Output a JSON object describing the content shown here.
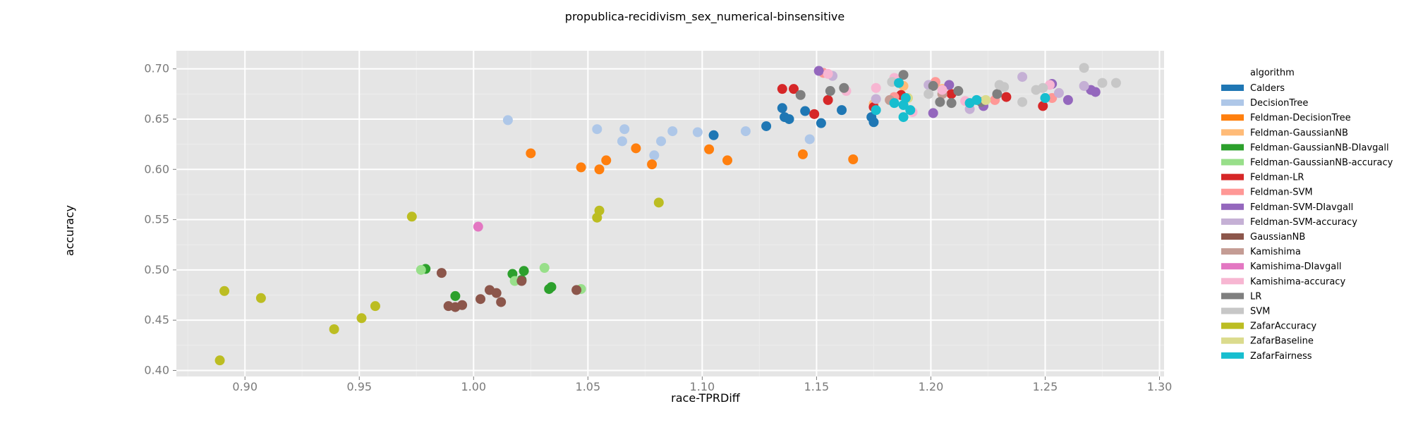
{
  "chart_data": {
    "type": "scatter",
    "title": "propublica-recidivism_sex_numerical-binsensitive",
    "xlabel": "race-TPRDiff",
    "ylabel": "accuracy",
    "xlim": [
      0.87,
      1.302
    ],
    "ylim": [
      0.394,
      0.718
    ],
    "x_ticks": [
      0.9,
      0.95,
      1.0,
      1.05,
      1.1,
      1.15,
      1.2,
      1.25,
      1.3
    ],
    "x_tick_labels": [
      "0.90",
      "0.95",
      "1.00",
      "1.05",
      "1.10",
      "1.15",
      "1.20",
      "1.25",
      "1.30"
    ],
    "y_ticks": [
      0.4,
      0.45,
      0.5,
      0.55,
      0.6,
      0.65,
      0.7
    ],
    "y_tick_labels": [
      "0.40",
      "0.45",
      "0.50",
      "0.55",
      "0.60",
      "0.65",
      "0.70"
    ],
    "grid": true,
    "background": "#e5e5e5",
    "legend": {
      "title": "algorithm",
      "position": "right"
    },
    "series": [
      {
        "name": "Calders",
        "color": "#1f77b4",
        "points": [
          [
            1.105,
            0.634
          ],
          [
            1.128,
            0.643
          ],
          [
            1.135,
            0.661
          ],
          [
            1.136,
            0.652
          ],
          [
            1.138,
            0.65
          ],
          [
            1.145,
            0.658
          ],
          [
            1.152,
            0.646
          ],
          [
            1.161,
            0.659
          ],
          [
            1.174,
            0.652
          ],
          [
            1.175,
            0.647
          ]
        ]
      },
      {
        "name": "DecisionTree",
        "color": "#aec7e8",
        "points": [
          [
            1.015,
            0.649
          ],
          [
            1.054,
            0.64
          ],
          [
            1.065,
            0.628
          ],
          [
            1.066,
            0.64
          ],
          [
            1.079,
            0.614
          ],
          [
            1.082,
            0.628
          ],
          [
            1.087,
            0.638
          ],
          [
            1.098,
            0.637
          ],
          [
            1.119,
            0.638
          ],
          [
            1.147,
            0.63
          ]
        ]
      },
      {
        "name": "Feldman-DecisionTree",
        "color": "#ff7f0e",
        "points": [
          [
            1.025,
            0.616
          ],
          [
            1.047,
            0.602
          ],
          [
            1.055,
            0.6
          ],
          [
            1.058,
            0.609
          ],
          [
            1.071,
            0.621
          ],
          [
            1.078,
            0.605
          ],
          [
            1.103,
            0.62
          ],
          [
            1.111,
            0.609
          ],
          [
            1.144,
            0.615
          ],
          [
            1.166,
            0.61
          ]
        ]
      },
      {
        "name": "Feldman-GaussianNB",
        "color": "#ffbb78",
        "points": [
          [
            1.175,
            0.665
          ],
          [
            1.188,
            0.683
          ],
          [
            1.205,
            0.68
          ]
        ]
      },
      {
        "name": "Feldman-GaussianNB-DIavgall",
        "color": "#2ca02c",
        "points": [
          [
            0.979,
            0.501
          ],
          [
            0.992,
            0.474
          ],
          [
            1.017,
            0.496
          ],
          [
            1.022,
            0.499
          ],
          [
            1.021,
            0.49
          ],
          [
            1.034,
            0.483
          ],
          [
            1.033,
            0.481
          ]
        ]
      },
      {
        "name": "Feldman-GaussianNB-accuracy",
        "color": "#98df8a",
        "points": [
          [
            0.977,
            0.5
          ],
          [
            1.018,
            0.489
          ],
          [
            1.031,
            0.502
          ],
          [
            1.047,
            0.481
          ]
        ]
      },
      {
        "name": "Feldman-LR",
        "color": "#d62728",
        "points": [
          [
            1.135,
            0.68
          ],
          [
            1.14,
            0.68
          ],
          [
            1.149,
            0.655
          ],
          [
            1.155,
            0.669
          ],
          [
            1.175,
            0.662
          ],
          [
            1.187,
            0.674
          ],
          [
            1.209,
            0.675
          ],
          [
            1.233,
            0.672
          ],
          [
            1.249,
            0.663
          ]
        ]
      },
      {
        "name": "Feldman-SVM",
        "color": "#ff9896",
        "points": [
          [
            1.153,
            0.696
          ],
          [
            1.184,
            0.672
          ],
          [
            1.202,
            0.687
          ],
          [
            1.228,
            0.669
          ],
          [
            1.253,
            0.671
          ]
        ]
      },
      {
        "name": "Feldman-SVM-DIavgall",
        "color": "#9467bd",
        "points": [
          [
            1.151,
            0.698
          ],
          [
            1.201,
            0.656
          ],
          [
            1.208,
            0.684
          ],
          [
            1.223,
            0.663
          ],
          [
            1.253,
            0.685
          ],
          [
            1.26,
            0.669
          ],
          [
            1.27,
            0.679
          ],
          [
            1.272,
            0.677
          ]
        ]
      },
      {
        "name": "Feldman-SVM-accuracy",
        "color": "#c5b0d5",
        "points": [
          [
            1.157,
            0.693
          ],
          [
            1.176,
            0.67
          ],
          [
            1.199,
            0.684
          ],
          [
            1.217,
            0.66
          ],
          [
            1.24,
            0.692
          ],
          [
            1.256,
            0.676
          ],
          [
            1.267,
            0.683
          ]
        ]
      },
      {
        "name": "GaussianNB",
        "color": "#8c564b",
        "points": [
          [
            0.986,
            0.497
          ],
          [
            0.989,
            0.464
          ],
          [
            0.992,
            0.463
          ],
          [
            0.995,
            0.465
          ],
          [
            1.003,
            0.471
          ],
          [
            1.007,
            0.48
          ],
          [
            1.01,
            0.477
          ],
          [
            1.012,
            0.468
          ],
          [
            1.021,
            0.489
          ],
          [
            1.045,
            0.48
          ]
        ]
      },
      {
        "name": "Kamishima",
        "color": "#c49c94",
        "points": [
          [
            1.182,
            0.669
          ],
          [
            1.205,
            0.675
          ]
        ]
      },
      {
        "name": "Kamishima-DIavgall",
        "color": "#e377c2",
        "points": [
          [
            1.002,
            0.543
          ]
        ]
      },
      {
        "name": "Kamishima-accuracy",
        "color": "#f7b6d2",
        "points": [
          [
            1.155,
            0.695
          ],
          [
            1.163,
            0.678
          ],
          [
            1.176,
            0.681
          ],
          [
            1.184,
            0.691
          ],
          [
            1.192,
            0.657
          ],
          [
            1.205,
            0.679
          ],
          [
            1.215,
            0.668
          ],
          [
            1.252,
            0.684
          ]
        ]
      },
      {
        "name": "LR",
        "color": "#7f7f7f",
        "points": [
          [
            1.143,
            0.674
          ],
          [
            1.156,
            0.678
          ],
          [
            1.162,
            0.681
          ],
          [
            1.188,
            0.694
          ],
          [
            1.201,
            0.683
          ],
          [
            1.204,
            0.667
          ],
          [
            1.209,
            0.666
          ],
          [
            1.212,
            0.678
          ],
          [
            1.222,
            0.667
          ],
          [
            1.229,
            0.675
          ]
        ]
      },
      {
        "name": "SVM",
        "color": "#c7c7c7",
        "points": [
          [
            1.183,
            0.687
          ],
          [
            1.199,
            0.675
          ],
          [
            1.23,
            0.684
          ],
          [
            1.232,
            0.682
          ],
          [
            1.24,
            0.667
          ],
          [
            1.246,
            0.679
          ],
          [
            1.249,
            0.681
          ],
          [
            1.267,
            0.701
          ],
          [
            1.275,
            0.686
          ],
          [
            1.281,
            0.686
          ]
        ]
      },
      {
        "name": "ZafarAccuracy",
        "color": "#bcbd22",
        "points": [
          [
            0.889,
            0.41
          ],
          [
            0.891,
            0.479
          ],
          [
            0.907,
            0.472
          ],
          [
            0.939,
            0.441
          ],
          [
            0.951,
            0.452
          ],
          [
            0.957,
            0.464
          ],
          [
            0.973,
            0.553
          ],
          [
            1.054,
            0.552
          ],
          [
            1.055,
            0.559
          ],
          [
            1.081,
            0.567
          ]
        ]
      },
      {
        "name": "ZafarBaseline",
        "color": "#dbdb8d",
        "points": [
          [
            1.19,
            0.671
          ],
          [
            1.224,
            0.669
          ]
        ]
      },
      {
        "name": "ZafarFairness",
        "color": "#17becf",
        "points": [
          [
            1.176,
            0.659
          ],
          [
            1.184,
            0.666
          ],
          [
            1.186,
            0.686
          ],
          [
            1.188,
            0.664
          ],
          [
            1.188,
            0.652
          ],
          [
            1.189,
            0.671
          ],
          [
            1.191,
            0.659
          ],
          [
            1.217,
            0.666
          ],
          [
            1.22,
            0.669
          ],
          [
            1.25,
            0.671
          ]
        ]
      }
    ]
  }
}
